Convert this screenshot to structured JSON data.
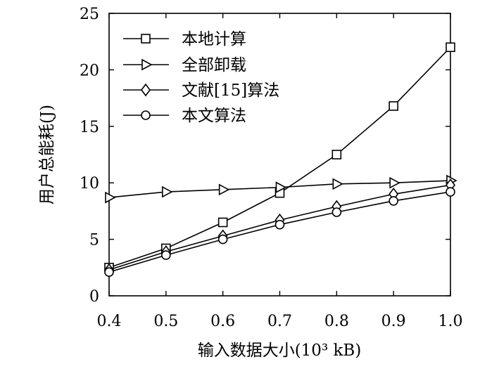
{
  "chart_data": {
    "type": "line",
    "xlabel": "输入数据大小(10³ kB)",
    "ylabel": "用户总能耗(J)",
    "x": [
      0.4,
      0.5,
      0.6,
      0.7,
      0.8,
      0.9,
      1.0
    ],
    "x_tick_labels": [
      "0.4",
      "0.5",
      "0.6",
      "0.7",
      "0.8",
      "0.9",
      "1.0"
    ],
    "y_ticks": [
      0,
      5,
      10,
      15,
      20,
      25
    ],
    "y_tick_labels": [
      "0",
      "5",
      "10",
      "15",
      "20",
      "25"
    ],
    "xlim": [
      0.4,
      1.0
    ],
    "ylim": [
      0,
      25
    ],
    "grid": false,
    "legend_position": "top-left",
    "series": [
      {
        "name": "本地计算",
        "marker": "square",
        "values": [
          2.5,
          4.2,
          6.5,
          9.1,
          12.5,
          16.8,
          22.0
        ]
      },
      {
        "name": "全部卸载",
        "marker": "triangle-right",
        "values": [
          8.7,
          9.2,
          9.4,
          9.6,
          9.9,
          10.0,
          10.2
        ]
      },
      {
        "name": "文献[15]算法",
        "marker": "diamond",
        "values": [
          2.3,
          3.9,
          5.3,
          6.7,
          7.9,
          9.0,
          9.8
        ]
      },
      {
        "name": "本文算法",
        "marker": "circle",
        "values": [
          2.1,
          3.6,
          5.0,
          6.3,
          7.4,
          8.4,
          9.2
        ]
      }
    ]
  }
}
